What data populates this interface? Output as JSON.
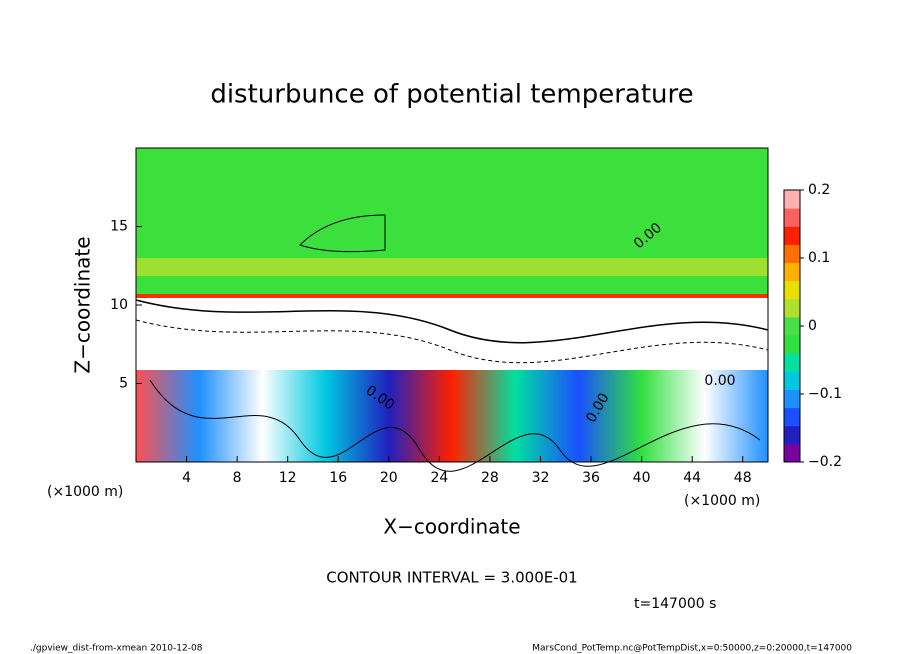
{
  "chart_data": {
    "type": "contour",
    "title": "disturbunce of potential temperature",
    "x_label": "X−coordinate",
    "y_label": "Z−coordinate",
    "x_unit": "(×1000 m)",
    "y_unit": "(×1000 m)",
    "xlim": [
      0,
      50
    ],
    "xticks": [
      4,
      8,
      12,
      16,
      20,
      24,
      28,
      32,
      36,
      40,
      44,
      48
    ],
    "ylim": [
      0,
      20
    ],
    "yticks": [
      5,
      10,
      15
    ],
    "colorbar_lim": [
      -0.2,
      0.2
    ],
    "colorbar_ticks": [
      {
        "value": 0.2,
        "label": "0.2"
      },
      {
        "value": 0.1,
        "label": "0.1"
      },
      0,
      {
        "value": -0.1,
        "label": "−0.1"
      },
      {
        "value": -0.2,
        "label": "−0.2"
      }
    ],
    "colorbar_colors": [
      "#7a00a0",
      "#2020c0",
      "#1a50ff",
      "#1e90ff",
      "#00c8e0",
      "#00e0a0",
      "#30e040",
      "#48e048",
      "#b0e030",
      "#e8e000",
      "#ffb000",
      "#ff7000",
      "#ff2000",
      "#ff6060",
      "#ffb0b0"
    ],
    "contour_labels": [
      "0.00",
      "0.00",
      "0.00",
      "0.00"
    ],
    "contour_interval": "CONTOUR INTERVAL = 3.000E-01",
    "time_label": "t=147000 s",
    "footer_left": "./gpview_dist-from-xmean  2010-12-08",
    "footer_right": "MarsCond_PotTemp.nc@PotTempDist,x=0:50000,z=0:20000,t=147000"
  }
}
